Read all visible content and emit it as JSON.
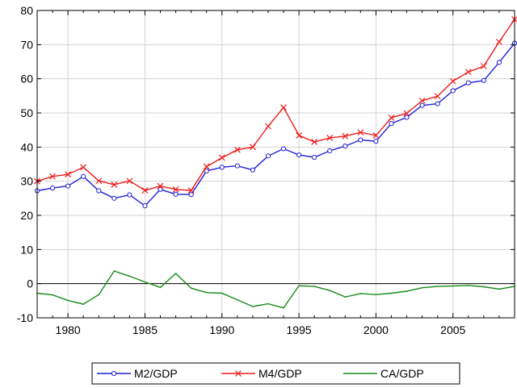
{
  "chart_data": {
    "type": "line",
    "title": "",
    "xlabel": "",
    "ylabel": "",
    "x": [
      1978,
      1979,
      1980,
      1981,
      1982,
      1983,
      1984,
      1985,
      1986,
      1987,
      1988,
      1989,
      1990,
      1991,
      1992,
      1993,
      1994,
      1995,
      1996,
      1997,
      1998,
      1999,
      2000,
      2001,
      2002,
      2003,
      2004,
      2005,
      2006,
      2007,
      2008,
      2009
    ],
    "xlim": [
      1978,
      2009
    ],
    "ylim": [
      -10,
      80
    ],
    "x_ticks": [
      1980,
      1985,
      1990,
      1995,
      2000,
      2005
    ],
    "x_tick_labels": [
      "1980",
      "1985",
      "1990",
      "1995",
      "2000",
      "2005"
    ],
    "y_ticks": [
      -10,
      0,
      10,
      20,
      30,
      40,
      50,
      60,
      70,
      80
    ],
    "y_tick_labels": [
      "-10",
      "0",
      "10",
      "20",
      "30",
      "40",
      "50",
      "60",
      "70",
      "80"
    ],
    "grid": true,
    "legend_position": "bottom",
    "colors": {
      "M2/GDP": "#1f1fd6",
      "M4/GDP": "#ee1c1c",
      "CA/GDP": "#1a8a1a",
      "grid": "#d3d3d3",
      "axis": "#000000"
    },
    "series": [
      {
        "name": "M2/GDP",
        "marker": "circle",
        "values": [
          27.2,
          28.0,
          28.6,
          31.4,
          27.2,
          25.0,
          26.0,
          22.8,
          27.6,
          26.2,
          26.1,
          33.0,
          34.1,
          34.5,
          33.3,
          37.4,
          39.5,
          37.7,
          37.0,
          38.9,
          40.3,
          42.1,
          41.7,
          46.9,
          48.7,
          52.2,
          52.7,
          56.5,
          58.8,
          59.5,
          64.8,
          70.4
        ]
      },
      {
        "name": "M4/GDP",
        "marker": "x",
        "values": [
          30.0,
          31.4,
          32.0,
          34.1,
          30.1,
          29.0,
          30.1,
          27.3,
          28.6,
          27.6,
          27.3,
          34.3,
          36.9,
          39.2,
          40.0,
          46.1,
          51.6,
          43.4,
          41.5,
          42.7,
          43.2,
          44.3,
          43.4,
          48.6,
          49.9,
          53.6,
          54.9,
          59.3,
          62.0,
          63.7,
          70.8,
          77.4
        ]
      },
      {
        "name": "CA/GDP",
        "marker": "none",
        "values": [
          -2.8,
          -3.3,
          -4.9,
          -6.0,
          -3.2,
          3.7,
          2.2,
          0.5,
          -1.1,
          3.0,
          -1.3,
          -2.6,
          -2.8,
          -4.7,
          -6.7,
          -5.9,
          -7.1,
          -0.6,
          -0.8,
          -2.0,
          -3.9,
          -2.9,
          -3.2,
          -2.8,
          -2.2,
          -1.2,
          -0.8,
          -0.7,
          -0.5,
          -0.9,
          -1.6,
          -0.8
        ]
      }
    ]
  }
}
